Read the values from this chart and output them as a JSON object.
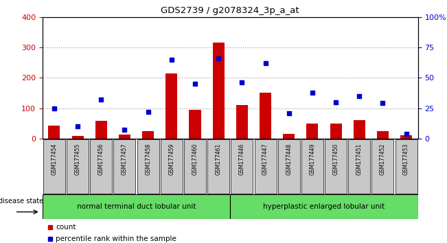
{
  "title": "GDS2739 / g2078324_3p_a_at",
  "samples": [
    "GSM177454",
    "GSM177455",
    "GSM177456",
    "GSM177457",
    "GSM177458",
    "GSM177459",
    "GSM177460",
    "GSM177461",
    "GSM177446",
    "GSM177447",
    "GSM177448",
    "GSM177449",
    "GSM177450",
    "GSM177451",
    "GSM177452",
    "GSM177453"
  ],
  "counts": [
    42,
    8,
    58,
    12,
    25,
    215,
    95,
    315,
    110,
    152,
    15,
    50,
    50,
    60,
    25,
    10
  ],
  "percentiles": [
    25,
    10,
    32,
    7,
    22,
    65,
    45,
    66,
    46,
    62,
    21,
    38,
    30,
    35,
    29,
    4
  ],
  "bar_color": "#cc0000",
  "dot_color": "#0000cc",
  "ylim_left": [
    0,
    400
  ],
  "ylim_right": [
    0,
    100
  ],
  "yticks_left": [
    0,
    100,
    200,
    300,
    400
  ],
  "yticks_right": [
    0,
    25,
    50,
    75,
    100
  ],
  "yticklabels_right": [
    "0",
    "25",
    "50",
    "75",
    "100%"
  ],
  "group1_label": "normal terminal duct lobular unit",
  "group2_label": "hyperplastic enlarged lobular unit",
  "group1_count": 8,
  "group2_count": 8,
  "disease_state_label": "disease state",
  "legend_count_label": "count",
  "legend_percentile_label": "percentile rank within the sample",
  "group_color": "#66dd66",
  "xticklabel_bg": "#c8c8c8",
  "bar_width": 0.5,
  "dot_size": 25,
  "grid_color": "#000000",
  "grid_alpha": 0.4
}
